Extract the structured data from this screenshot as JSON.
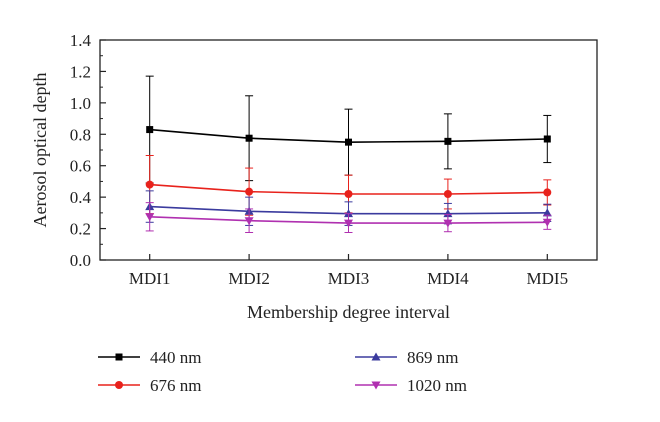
{
  "chart_data": {
    "type": "line",
    "title": "",
    "xlabel": "Membership degree interval",
    "ylabel": "Aerosol optical depth",
    "categories": [
      "MDI1",
      "MDI2",
      "MDI3",
      "MDI4",
      "MDI5"
    ],
    "ylim": [
      0.0,
      1.4
    ],
    "yticks": [
      "0.0",
      "0.2",
      "0.4",
      "0.6",
      "0.8",
      "1.0",
      "1.2",
      "1.4"
    ],
    "grid": false,
    "legend_position": "bottom",
    "series": [
      {
        "name": "440 nm",
        "color": "#000000",
        "marker": "square",
        "values": [
          0.83,
          0.775,
          0.75,
          0.755,
          0.77
        ],
        "error": [
          0.34,
          0.27,
          0.21,
          0.175,
          0.15
        ]
      },
      {
        "name": "676 nm",
        "color": "#e8221c",
        "marker": "circle",
        "values": [
          0.48,
          0.435,
          0.42,
          0.42,
          0.43
        ],
        "error": [
          0.185,
          0.15,
          0.12,
          0.095,
          0.08
        ]
      },
      {
        "name": "869 nm",
        "color": "#3b3b9e",
        "marker": "triangle-up",
        "values": [
          0.34,
          0.31,
          0.295,
          0.295,
          0.3
        ],
        "error": [
          0.1,
          0.09,
          0.075,
          0.065,
          0.055
        ]
      },
      {
        "name": "1020 nm",
        "color": "#b030b0",
        "marker": "triangle-down",
        "values": [
          0.275,
          0.25,
          0.235,
          0.235,
          0.24
        ],
        "error": [
          0.09,
          0.075,
          0.06,
          0.055,
          0.045
        ]
      }
    ]
  }
}
